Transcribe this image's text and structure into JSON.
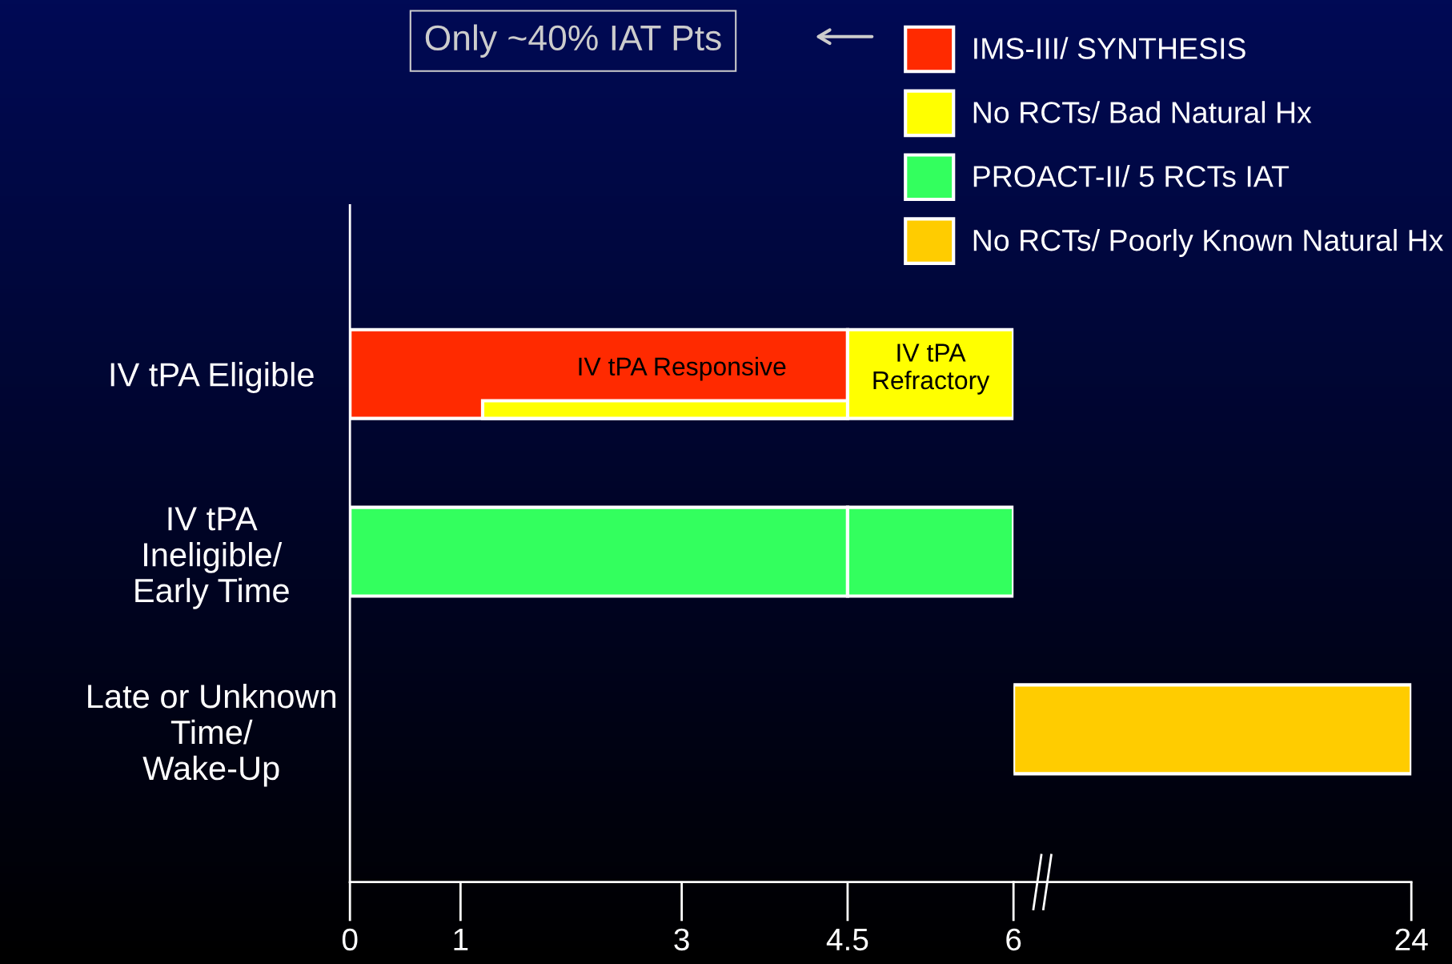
{
  "chart_data": [
    {
      "type": "bar",
      "orientation": "horizontal",
      "categories": [
        "IV tPA Eligible",
        "IV tPA\nIneligible/\nEarly Time",
        "Late or Unknown\nTime/\nWake-Up"
      ],
      "series": [
        {
          "name": "IMS-III/ SYNTHESIS",
          "color": "#ff2a00",
          "values": [
            4.5,
            null,
            null
          ],
          "base": [
            0,
            null,
            null
          ]
        },
        {
          "name": "No RCTs/ Bad Natural Hx",
          "color": "#ffff00",
          "values": [
            1.5,
            null,
            null
          ],
          "base": [
            4.5,
            null,
            null
          ]
        },
        {
          "color": "#ffff00",
          "values": [
            3.3,
            null,
            null
          ],
          "base": [
            1.2,
            null,
            null
          ]
        },
        {
          "name": "PROACT-II/ 5 RCTs IAT",
          "color": "#33ff5e",
          "values": [
            null,
            4.5,
            null
          ],
          "base": [
            null,
            0,
            null
          ]
        },
        {
          "color": "#33ff5e",
          "values": [
            null,
            1.5,
            null
          ],
          "base": [
            null,
            4.5,
            null
          ]
        }
      ],
      "xlim": [
        0,
        6
      ],
      "xticks": [
        0,
        1,
        3,
        4.5
      ],
      "legend": "top right",
      "annotations": [
        "IV tPA Responsive",
        "IV tPA\nRefractory",
        "Only ~40% IAT Pts"
      ]
    },
    {
      "type": "bar",
      "orientation": "horizontal",
      "categories": [
        null,
        null,
        null
      ],
      "series": [
        {
          "name": "No RCTs/ Poorly Known Natural Hx",
          "color": "#ffcc00",
          "values": [
            null,
            null,
            18
          ],
          "base": [
            null,
            null,
            6
          ]
        }
      ],
      "xlim": [
        6,
        24
      ],
      "xticks": [
        6,
        24
      ],
      "tick_labels": "x",
      "legend": "top right"
    }
  ]
}
